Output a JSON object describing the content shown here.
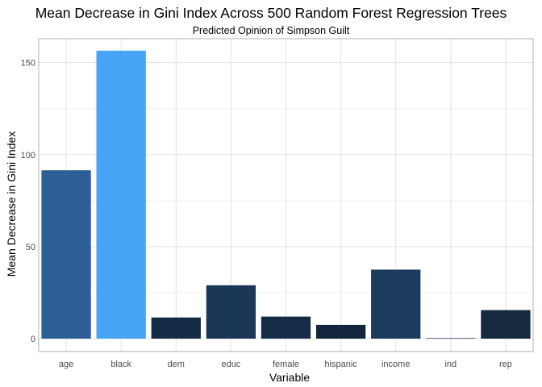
{
  "chart_data": {
    "type": "bar",
    "title": "Mean Decrease in Gini Index Across 500 Random Forest Regression Trees",
    "subtitle": "Predicted Opinion of Simpson Guilt",
    "xlabel": "Variable",
    "ylabel": "Mean Decrease in Gini Index",
    "categories": [
      "age",
      "black",
      "dem",
      "educ",
      "female",
      "hispanic",
      "income",
      "ind",
      "rep"
    ],
    "values": [
      91.5,
      156.5,
      11.5,
      29.0,
      12.0,
      7.5,
      37.5,
      0.3,
      15.5
    ],
    "colors": [
      "#2B5F96",
      "#48A4F6",
      "#142A45",
      "#1B3756",
      "#152C47",
      "#13253D",
      "#1C3A5C",
      "#132B4C",
      "#15293F"
    ],
    "ylim": [
      -7,
      163
    ],
    "yticks": [
      0,
      50,
      100,
      150
    ],
    "grid": true,
    "legend": "none"
  }
}
